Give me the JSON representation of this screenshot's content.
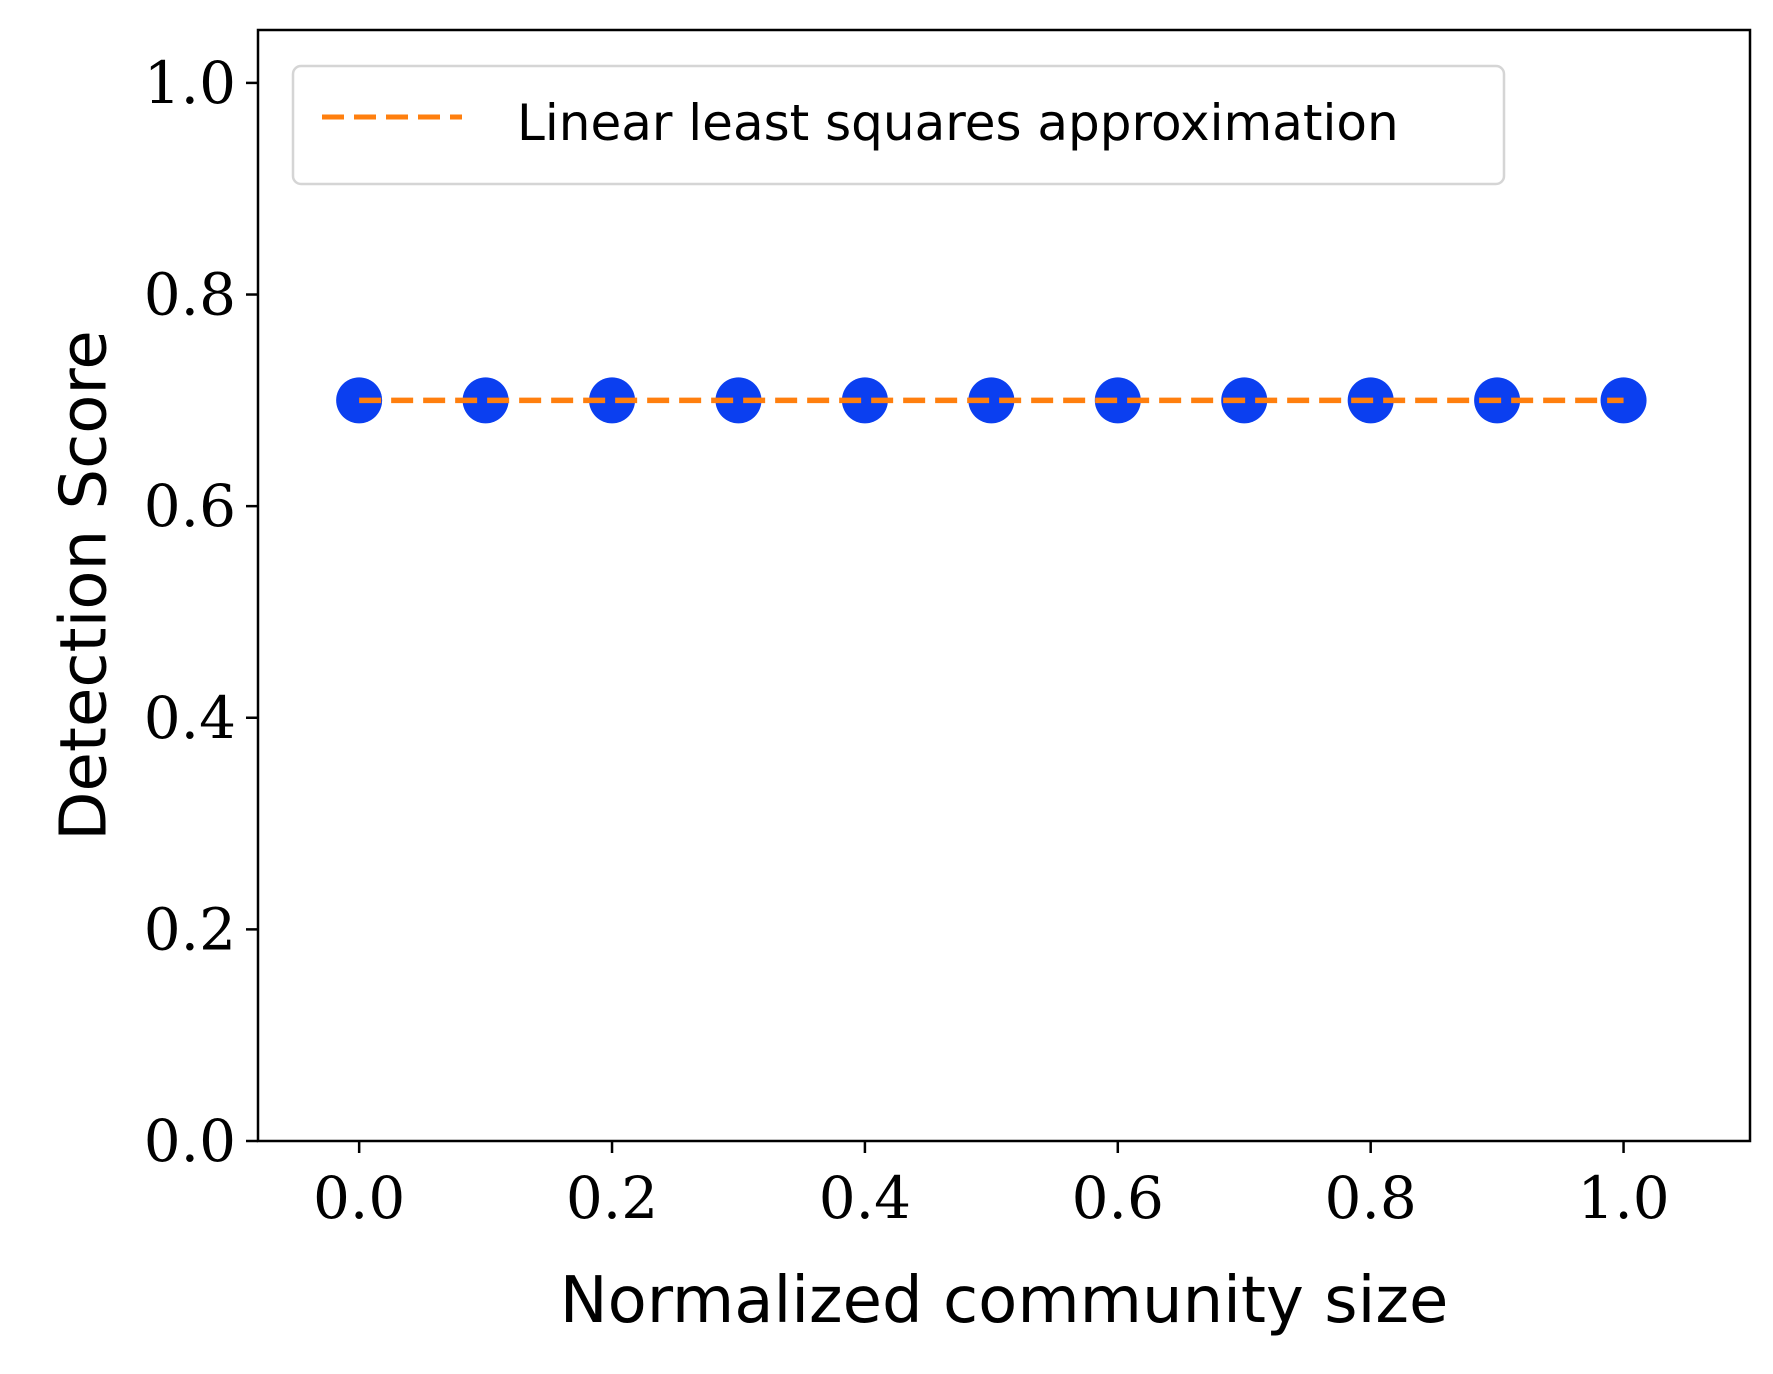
{
  "chart_data": {
    "type": "scatter",
    "title": "",
    "xlabel": "Normalized community size",
    "ylabel": "Detection Score",
    "xlim": [
      -0.08,
      1.1
    ],
    "ylim": [
      0.0,
      1.05
    ],
    "xticks": [
      "0.0",
      "0.2",
      "0.4",
      "0.6",
      "0.8",
      "1.0"
    ],
    "xtick_values": [
      0.0,
      0.2,
      0.4,
      0.6,
      0.8,
      1.0
    ],
    "yticks": [
      "0.0",
      "0.2",
      "0.4",
      "0.6",
      "0.8",
      "1.0"
    ],
    "ytick_values": [
      0.0,
      0.2,
      0.4,
      0.6,
      0.8,
      1.0
    ],
    "grid": false,
    "legend_position": "top-left",
    "series": [
      {
        "kind": "scatter",
        "color": "#0b3ff0",
        "x": [
          0.0,
          0.1,
          0.2,
          0.3,
          0.4,
          0.5,
          0.6,
          0.7,
          0.8,
          0.9,
          1.0
        ],
        "y": [
          0.7,
          0.7,
          0.7,
          0.7,
          0.7,
          0.7,
          0.7,
          0.7,
          0.7,
          0.7,
          0.7
        ]
      },
      {
        "kind": "line",
        "style": "dashed",
        "name": "Linear least squares approximation",
        "color": "#ff7f0e",
        "x": [
          0.0,
          1.0
        ],
        "y": [
          0.7,
          0.7
        ]
      }
    ]
  }
}
